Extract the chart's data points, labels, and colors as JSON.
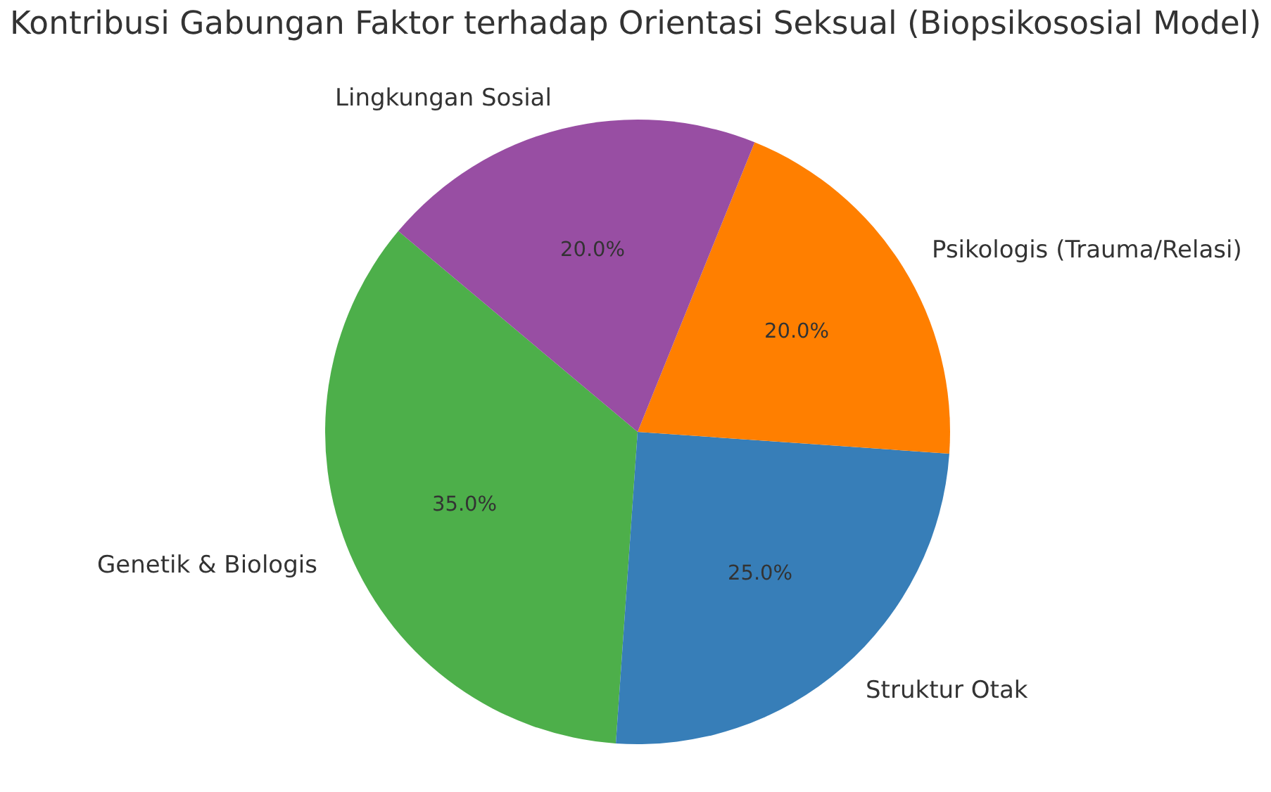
{
  "chart_data": {
    "type": "pie",
    "title": "Kontribusi Gabungan Faktor terhadap Orientasi Seksual (Biopsikososial Model)",
    "categories": [
      "Genetik & Biologis",
      "Struktur Otak",
      "Psikologis (Trauma/Relasi)",
      "Lingkungan Sosial"
    ],
    "values": [
      35,
      25,
      20,
      20
    ],
    "colors": [
      "#4daf4a",
      "#377eb8",
      "#ff7f00",
      "#984ea3"
    ],
    "value_labels": [
      "35.0%",
      "25.0%",
      "20.0%",
      "20.0%"
    ]
  }
}
